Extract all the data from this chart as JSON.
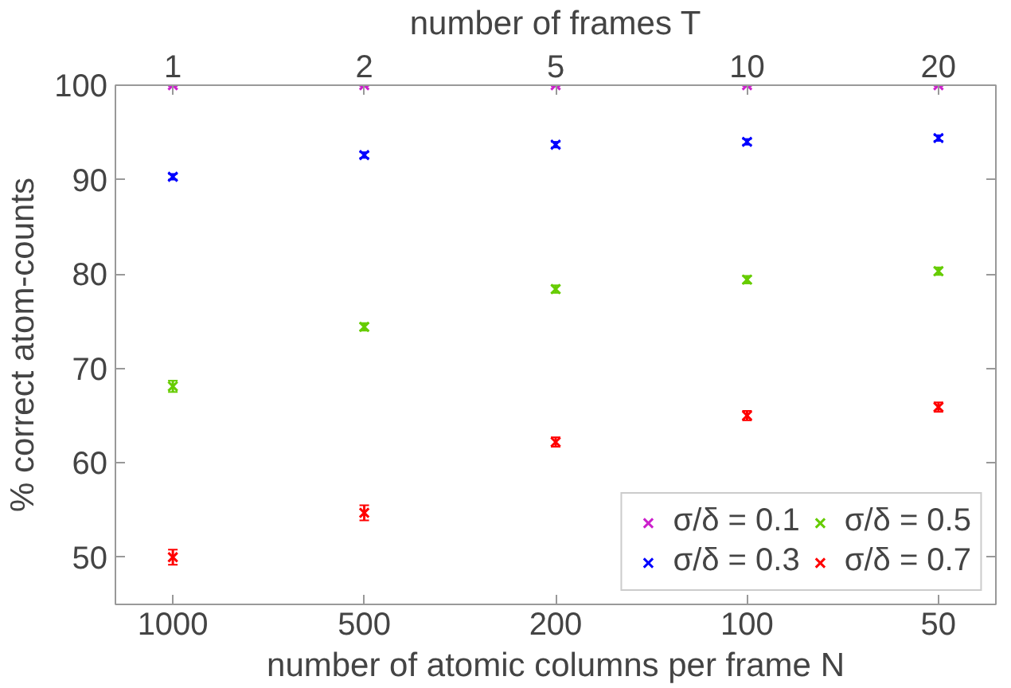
{
  "chart_data": {
    "type": "scatter",
    "xlabel": "number of atomic columns per frame N",
    "ylabel": "% correct atom-counts",
    "x2label": "number of frames T",
    "categories": [
      "1000",
      "500",
      "200",
      "100",
      "50"
    ],
    "annotations": [
      {
        "text": "1",
        "x": "1000"
      },
      {
        "text": "2",
        "x": "500"
      },
      {
        "text": "5",
        "x": "200"
      },
      {
        "text": "10",
        "x": "100"
      },
      {
        "text": "20",
        "x": "50"
      }
    ],
    "ylim": [
      45,
      100
    ],
    "yticks": [
      50,
      60,
      70,
      80,
      90,
      100
    ],
    "marker": "cross",
    "grid": false,
    "legend": "bottom right",
    "series": [
      {
        "name": "σ/δ = 0.1",
        "color": "#cc22cc",
        "values": [
          100,
          100,
          100,
          100,
          100
        ],
        "errors": [
          0.1,
          0.1,
          0.1,
          0.1,
          0.1
        ]
      },
      {
        "name": "σ/δ = 0.3",
        "color": "#0000ff",
        "values": [
          90.3,
          92.6,
          93.7,
          94.0,
          94.4
        ],
        "errors": [
          0.3,
          0.3,
          0.3,
          0.3,
          0.3
        ]
      },
      {
        "name": "σ/δ = 0.5",
        "color": "#66cc00",
        "values": [
          68.1,
          74.4,
          78.4,
          79.4,
          80.3
        ],
        "errors": [
          0.6,
          0.4,
          0.4,
          0.4,
          0.4
        ]
      },
      {
        "name": "σ/δ = 0.7",
        "color": "#ff0000",
        "values": [
          50.0,
          54.7,
          62.2,
          65.0,
          65.9
        ],
        "errors": [
          0.8,
          0.8,
          0.5,
          0.5,
          0.5
        ]
      }
    ]
  }
}
